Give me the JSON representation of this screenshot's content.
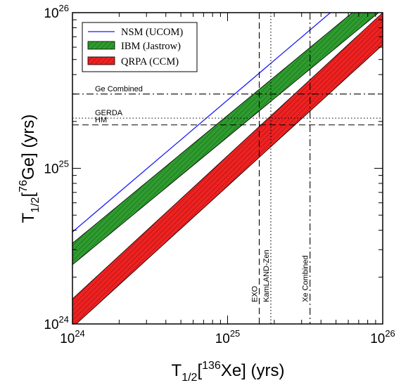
{
  "chart_data": {
    "type": "area",
    "title": "",
    "xlabel": {
      "prefix": "T",
      "sub": "1/2",
      "open": "[",
      "sup": "136",
      "element": "Xe",
      "close": "] (yrs)"
    },
    "ylabel": {
      "prefix": "T",
      "sub": "1/2",
      "open": "[",
      "sup": "76",
      "element": "Ge",
      "close": "] (yrs)"
    },
    "xscale": "log",
    "yscale": "log",
    "xlim": [
      1e+24,
      1e+26
    ],
    "ylim": [
      1e+24,
      1e+26
    ],
    "xticks": [
      {
        "value": 1e+24,
        "base": "10",
        "exp": "24"
      },
      {
        "value": 1e+25,
        "base": "10",
        "exp": "25"
      },
      {
        "value": 1e+26,
        "base": "10",
        "exp": "26"
      }
    ],
    "yticks": [
      {
        "value": 1e+24,
        "base": "10",
        "exp": "24"
      },
      {
        "value": 1e+25,
        "base": "10",
        "exp": "25"
      },
      {
        "value": 1e+26,
        "base": "10",
        "exp": "26"
      }
    ],
    "grid": false,
    "legend_position": "top-left",
    "series": [
      {
        "name": "NSM (UCOM)",
        "kind": "line",
        "color": "#1a1aff",
        "x": [
          1e+24,
          4.6e+25
        ],
        "y": [
          3.9e+24,
          1e+26
        ]
      },
      {
        "name": "IBM (Jastrow)",
        "kind": "band",
        "color": "#2e9c2e",
        "hatch": "#1e6e1e",
        "x": [
          1e+24,
          1e+26
        ],
        "y_upper": [
          3.3e+24,
          1.45e+26
        ],
        "y_lower": [
          2.4e+24,
          1.05e+26
        ]
      },
      {
        "name": "QRPA (CCM)",
        "kind": "band",
        "color": "#ee2222",
        "hatch": "#b31111",
        "x": [
          1e+24,
          1e+26
        ],
        "y_upper": [
          1.45e+24,
          1e+26
        ],
        "y_lower": [
          9.5e+23,
          6.2e+25
        ]
      }
    ],
    "reference_lines": [
      {
        "label": "Ge Combined",
        "orientation": "horizontal",
        "value": 3e+25,
        "style": "dashdot"
      },
      {
        "label": "GERDA",
        "orientation": "horizontal",
        "value": 2.1e+25,
        "style": "dotted"
      },
      {
        "label": "HM",
        "orientation": "horizontal",
        "value": 1.9e+25,
        "style": "dashed"
      },
      {
        "label": "EXO",
        "orientation": "vertical",
        "value": 1.6e+25,
        "style": "dashed"
      },
      {
        "label": "KamLAND-Zen",
        "orientation": "vertical",
        "value": 1.9e+25,
        "style": "dotted"
      },
      {
        "label": "Xe Combined",
        "orientation": "vertical",
        "value": 3.4e+25,
        "style": "dashdot"
      }
    ]
  }
}
